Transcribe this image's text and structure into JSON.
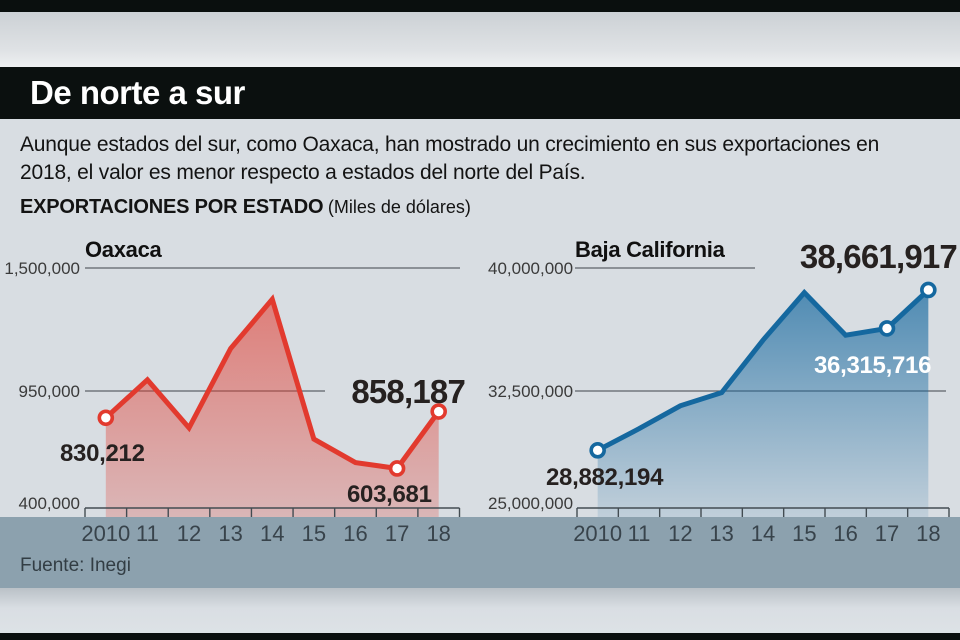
{
  "masthead": {
    "title": "De norte a sur"
  },
  "intro": {
    "text": "Aunque estados del sur, como Oaxaca, han mostrado un crecimiento en sus exportaciones en 2018, el valor es menor respecto a estados del norte del País."
  },
  "section": {
    "label": "EXPORTACIONES POR ESTADO",
    "unit": "(Miles de dólares)"
  },
  "source": {
    "text": "Fuente: Inegi"
  },
  "colors": {
    "oaxaca_line": "#e23a2e",
    "baja_line": "#15689f",
    "background": "#d8dde2",
    "band": "#8ca1ae",
    "bars": "#0a0f0e",
    "grid": "#5d6368",
    "axis": "#434c52"
  },
  "chart_data": [
    {
      "type": "area",
      "title": "Oaxaca",
      "x": [
        "2010",
        "11",
        "12",
        "13",
        "14",
        "15",
        "16",
        "17",
        "18"
      ],
      "values": [
        830212,
        1000000,
        785000,
        1140000,
        1360000,
        735000,
        630000,
        603681,
        858187
      ],
      "ylim": [
        400000,
        1500000
      ],
      "y_ticks": [
        {
          "value": 1500000,
          "label": "1,500,000"
        },
        {
          "value": 950000,
          "label": "950,000"
        },
        {
          "value": 400000,
          "label": "400,000"
        }
      ],
      "annotations": [
        {
          "index": 0,
          "label": "830,212"
        },
        {
          "index": 7,
          "label": "603,681"
        },
        {
          "index": 8,
          "label": "858,187",
          "emphasis": true
        }
      ],
      "marker_indices": [
        0,
        7,
        8
      ],
      "color": "#e23a2e",
      "grid_on": true,
      "legend": "none",
      "note": "values for 2011-2016 estimated from gridlines"
    },
    {
      "type": "area",
      "title": "Baja California",
      "x": [
        "2010",
        "11",
        "12",
        "13",
        "14",
        "15",
        "16",
        "17",
        "18"
      ],
      "values": [
        28882194,
        30200000,
        31600000,
        32400000,
        35600000,
        38500000,
        35900000,
        36315716,
        38661917
      ],
      "ylim": [
        25000000,
        40000000
      ],
      "y_ticks": [
        {
          "value": 40000000,
          "label": "40,000,000"
        },
        {
          "value": 32500000,
          "label": "32,500,000"
        },
        {
          "value": 25000000,
          "label": "25,000,000"
        }
      ],
      "annotations": [
        {
          "index": 0,
          "label": "28,882,194"
        },
        {
          "index": 7,
          "label": "36,315,716"
        },
        {
          "index": 8,
          "label": "38,661,917",
          "emphasis": true
        }
      ],
      "marker_indices": [
        0,
        7,
        8
      ],
      "color": "#15689f",
      "grid_on": true,
      "legend": "none",
      "note": "values for 2011-2016 estimated from gridlines"
    }
  ]
}
